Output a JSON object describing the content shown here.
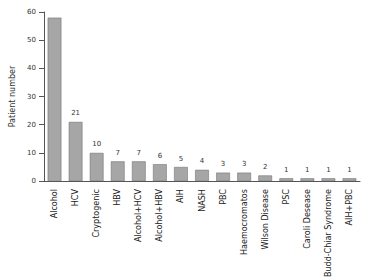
{
  "chart_data": {
    "type": "bar",
    "y_label": "Patient number",
    "categories": [
      "Alcohol",
      "HCV",
      "Cryptogenic",
      "HBV",
      "Alcohol+HCV",
      "Alcohol+HBV",
      "AIH",
      "NASH",
      "PBC",
      "Haemocromatos",
      "Wilson Disease",
      "PSC",
      "Caroli Desease",
      "Budd-Chiar Syndrome",
      "AIH+PBC"
    ],
    "values": [
      58,
      21,
      10,
      7,
      7,
      6,
      5,
      4,
      3,
      3,
      2,
      1,
      1,
      1,
      1
    ],
    "value_labels": [
      null,
      "21",
      "10",
      "7",
      "7",
      "6",
      "5",
      "4",
      "3",
      "3",
      "2",
      "1",
      "1",
      "1",
      "1"
    ],
    "data_labels": true,
    "color": "#a6a6a6",
    "ylim": [
      0,
      60
    ],
    "yticks": [
      0,
      10,
      20,
      30,
      40,
      50,
      60
    ],
    "grid": false
  }
}
